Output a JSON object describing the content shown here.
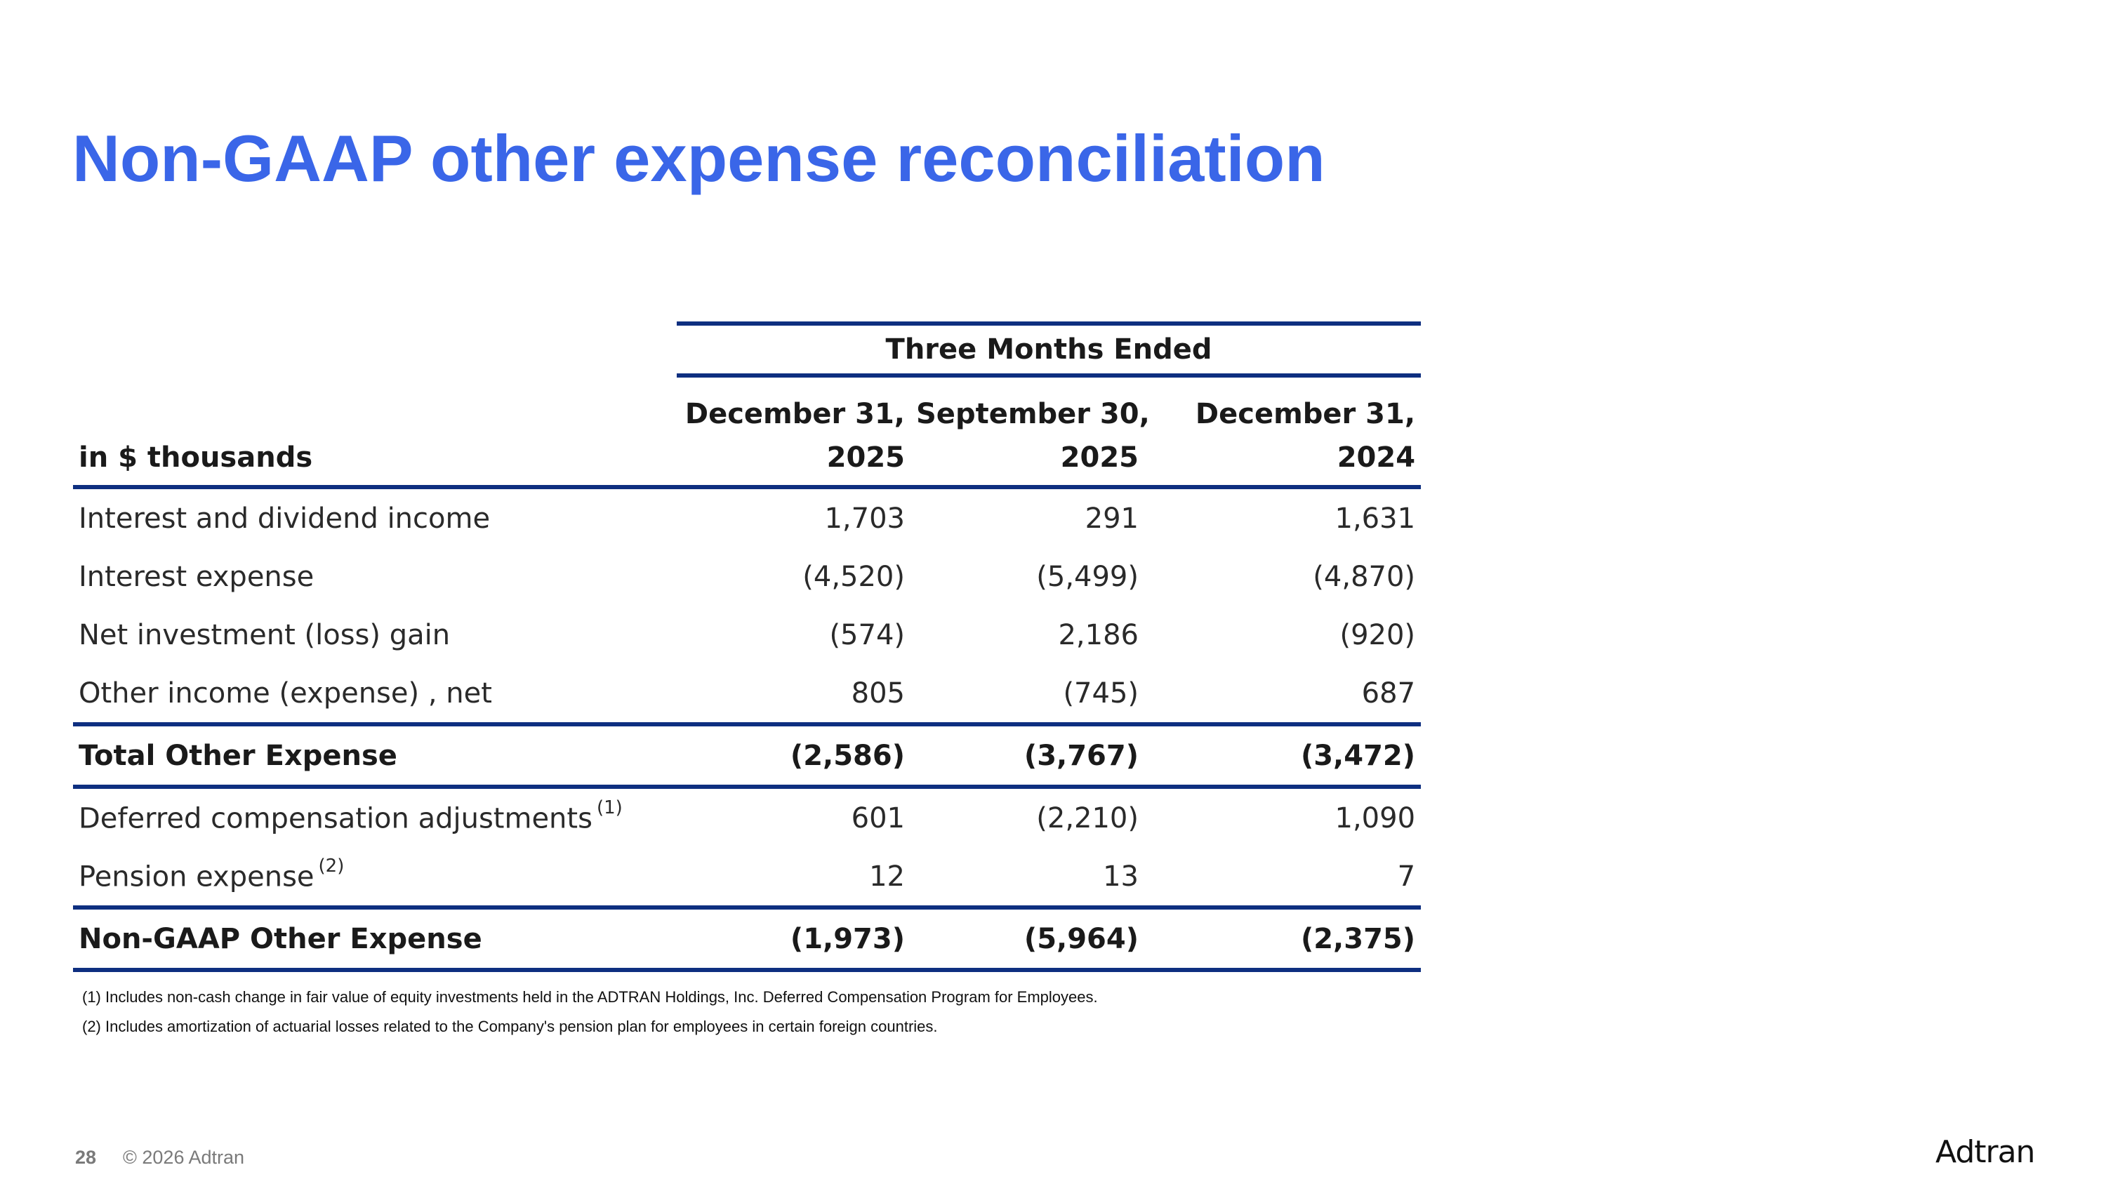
{
  "title": "Non-GAAP other expense reconciliation",
  "table": {
    "group_header": "Three Months Ended",
    "unit_label": "in $ thousands",
    "columns": [
      {
        "date": "December 31,",
        "year": "2025"
      },
      {
        "date": "September 30,",
        "year": "2025"
      },
      {
        "date": "December 31,",
        "year": "2024"
      }
    ],
    "rows": [
      {
        "label": "Interest and dividend income",
        "note": "",
        "values": [
          "1,703",
          "291",
          "1,631"
        ],
        "bold": false
      },
      {
        "label": "Interest expense",
        "note": "",
        "values": [
          "(4,520)",
          "(5,499)",
          "(4,870)"
        ],
        "bold": false
      },
      {
        "label": "Net investment (loss) gain",
        "note": "",
        "values": [
          "(574)",
          "2,186",
          "(920)"
        ],
        "bold": false
      },
      {
        "label": "Other income (expense) , net",
        "note": "",
        "values": [
          "805",
          "(745)",
          "687"
        ],
        "bold": false
      },
      {
        "label": "Total Other Expense",
        "note": "",
        "values": [
          "(2,586)",
          "(3,767)",
          "(3,472)"
        ],
        "bold": true
      },
      {
        "label": "Deferred compensation adjustments",
        "note": "(1)",
        "values": [
          "601",
          "(2,210)",
          "1,090"
        ],
        "bold": false
      },
      {
        "label": "Pension expense",
        "note": "(2)",
        "values": [
          "12",
          "13",
          "7"
        ],
        "bold": false
      },
      {
        "label": "Non-GAAP Other Expense",
        "note": "",
        "values": [
          "(1,973)",
          "(5,964)",
          "(2,375)"
        ],
        "bold": true
      }
    ]
  },
  "footnotes": [
    "(1) Includes non-cash change in fair value of equity investments held in the ADTRAN Holdings, Inc. Deferred Compensation Program for Employees.",
    "(2) Includes amortization of actuarial losses related to the Company's pension plan for employees in certain foreign countries."
  ],
  "footer": {
    "page_number": "28",
    "copyright": "© 2026 Adtran",
    "logo_text": "Adtran"
  },
  "colors": {
    "title": "#3a66e8",
    "rule": "#0e2f80"
  }
}
